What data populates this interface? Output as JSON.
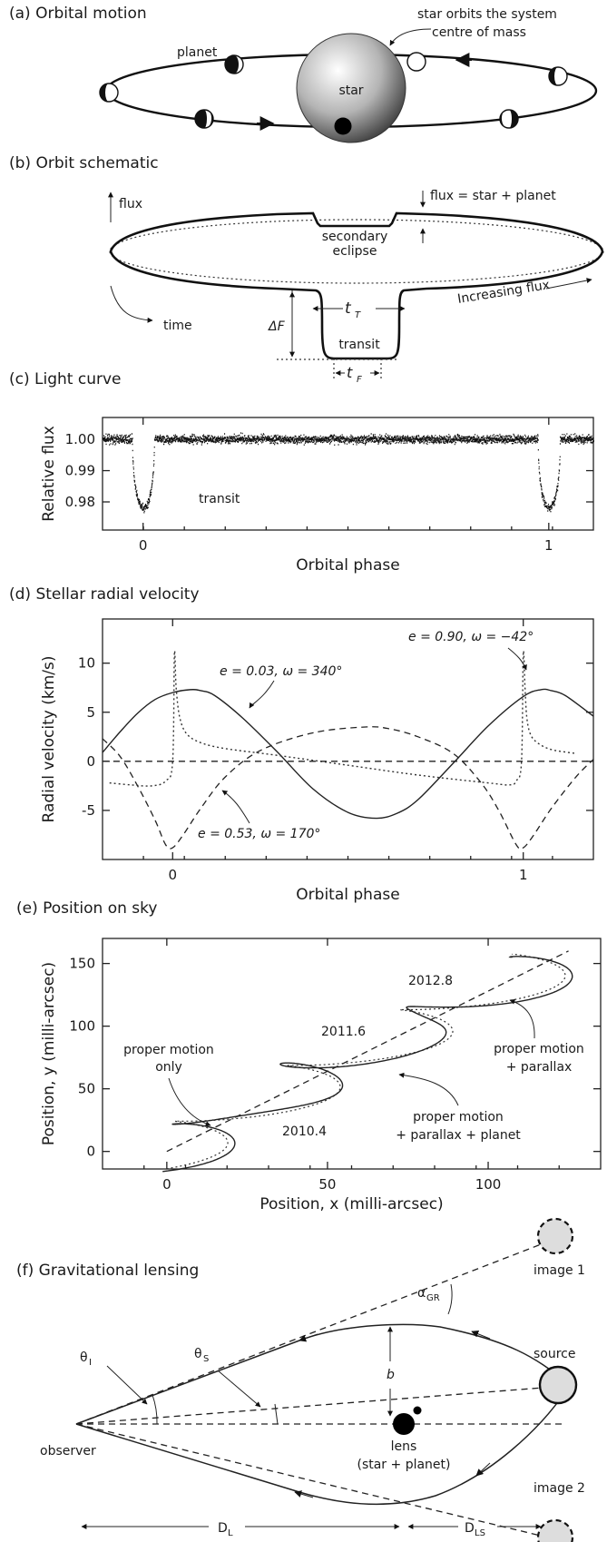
{
  "panels": {
    "a": {
      "title": "(a) Orbital motion",
      "planet": "planet",
      "star": "star",
      "note_l1": "star orbits the system",
      "note_l2": "centre of mass"
    },
    "b": {
      "title": "(b) Orbit schematic",
      "flux_axis": "flux",
      "time_axis": "time",
      "flux_eq": "flux = star + planet",
      "secondary_l1": "secondary",
      "secondary_l2": "eclipse",
      "transit": "transit",
      "increasing": "Increasing flux",
      "deltaF": "ΔF",
      "tT": "t",
      "tT_sub": "T",
      "tF": "t",
      "tF_sub": "F"
    },
    "c": {
      "title": "(c) Light curve"
    },
    "d": {
      "title": "(d) Stellar radial velocity"
    },
    "e": {
      "title": "(e) Position on sky"
    },
    "f": {
      "title": "(f) Gravitational lensing",
      "image1": "image 1",
      "image2": "image 2",
      "source": "source",
      "observer": "observer",
      "lens": "lens",
      "lens_sub": "(star + planet)",
      "alpha": "α",
      "alpha_sub": "GR",
      "theta_i": "θ",
      "theta_i_sub": "I",
      "theta_s": "θ",
      "theta_s_sub": "S",
      "b": "b",
      "dl": "D",
      "dl_sub": "L",
      "dls": "D",
      "dls_sub": "LS"
    }
  },
  "chart_data": [
    {
      "type": "scatter",
      "title": "",
      "xlabel": "Orbital phase",
      "ylabel": "Relative flux",
      "xlim": [
        -0.1,
        1.11
      ],
      "ylim": [
        0.971,
        1.007
      ],
      "xticks": [
        {
          "v": 0,
          "label": "0"
        },
        {
          "v": 1,
          "label": "1"
        }
      ],
      "yticks": [
        {
          "v": 1.0,
          "label": "1.00"
        },
        {
          "v": 0.99,
          "label": "0.99"
        },
        {
          "v": 0.98,
          "label": "0.98"
        }
      ],
      "annotation": "transit",
      "model": {
        "baseline": 1.0,
        "depth": 0.022,
        "half_width": 0.027,
        "noise": 0.0009,
        "transit_phases": [
          0,
          1
        ]
      }
    },
    {
      "type": "line",
      "title": "",
      "xlabel": "Orbital phase",
      "ylabel": "Radial velocity (km/s)",
      "xlim": [
        -0.2,
        1.2
      ],
      "ylim": [
        -10,
        14.5
      ],
      "xticks": [
        {
          "v": 0,
          "label": "0"
        },
        {
          "v": 1,
          "label": "1"
        }
      ],
      "yticks": [
        {
          "v": 10,
          "label": "10"
        },
        {
          "v": 5,
          "label": "5"
        },
        {
          "v": 0,
          "label": "0"
        },
        {
          "v": -5,
          "label": "-5"
        }
      ],
      "zero_line": true,
      "series": [
        {
          "name": "e = 0.03, ω = 340°",
          "style": "solid",
          "x": [
            -0.2,
            -0.15,
            -0.1,
            -0.05,
            0,
            0.05,
            0.08,
            0.12,
            0.2,
            0.3,
            0.4,
            0.5,
            0.58,
            0.64,
            0.7,
            0.8,
            0.9,
            1.0,
            1.05,
            1.08,
            1.12,
            1.2
          ],
          "y": [
            0.9,
            3.0,
            4.9,
            6.3,
            7.0,
            7.3,
            7.2,
            6.7,
            4.4,
            0.9,
            -2.8,
            -5.2,
            -5.8,
            -5.3,
            -3.9,
            -0.2,
            3.6,
            6.6,
            7.3,
            7.2,
            6.7,
            4.6
          ]
        },
        {
          "name": "e = 0.90, ω = −42°",
          "style": "dotted",
          "x": [
            -0.18,
            -0.12,
            -0.06,
            -0.02,
            0,
            0.005,
            0.01,
            0.02,
            0.04,
            0.08,
            0.15,
            0.3,
            0.5,
            0.7,
            0.9,
            0.96,
            0.98,
            0.995,
            1.0,
            1.005,
            1.01,
            1.02,
            1.04,
            1.08,
            1.15
          ],
          "y": [
            -2.2,
            -2.4,
            -2.5,
            -2.0,
            0,
            11.0,
            7.5,
            4.5,
            2.8,
            1.9,
            1.3,
            0.6,
            -0.4,
            -1.4,
            -2.2,
            -2.4,
            -2.0,
            0,
            11.0,
            7.5,
            4.5,
            2.8,
            1.9,
            1.2,
            0.8
          ]
        },
        {
          "name": "e = 0.53, ω = 170°",
          "style": "dashed",
          "x": [
            -0.2,
            -0.15,
            -0.1,
            -0.05,
            -0.02,
            0,
            0.03,
            0.08,
            0.15,
            0.25,
            0.4,
            0.55,
            0.62,
            0.7,
            0.8,
            0.88,
            0.93,
            0.98,
            1.0,
            1.03,
            1.08,
            1.15,
            1.2
          ],
          "y": [
            2.3,
            0.5,
            -2.5,
            -6.0,
            -8.5,
            -8.8,
            -7.5,
            -4.8,
            -1.6,
            1.1,
            2.9,
            3.5,
            3.3,
            2.5,
            0.8,
            -2.2,
            -5.0,
            -8.5,
            -8.8,
            -7.5,
            -4.8,
            -1.6,
            0.2
          ]
        },
        {
          "name": "",
          "style": "dashed",
          "x": [
            -0.2,
            1.2
          ],
          "y": [
            0,
            0
          ]
        }
      ],
      "labels": [
        "e = 0.03, ω = 340°",
        "e = 0.90, ω = −42°",
        "e = 0.53, ω = 170°"
      ]
    },
    {
      "type": "line",
      "title": "",
      "xlabel": "Position, x (milli-arcsec)",
      "ylabel": "Position, y (milli-arcsec)",
      "xlim": [
        -20,
        135
      ],
      "ylim": [
        -14,
        170
      ],
      "xticks": [
        {
          "v": 0,
          "label": "0"
        },
        {
          "v": 50,
          "label": "50"
        },
        {
          "v": 100,
          "label": "100"
        }
      ],
      "yticks": [
        {
          "v": 0,
          "label": "0"
        },
        {
          "v": 50,
          "label": "50"
        },
        {
          "v": 100,
          "label": "100"
        },
        {
          "v": 150,
          "label": "150"
        }
      ],
      "series": [
        {
          "name": "proper motion only",
          "style": "dashed",
          "x": [
            0,
            125
          ],
          "y": [
            0,
            160
          ]
        },
        {
          "name": "proper motion + parallax",
          "style": "dotted",
          "model": {
            "x0": -5,
            "y0": -7,
            "vx": 35,
            "vy": 44.5,
            "amp": 16,
            "t0": 2009.8,
            "t1": 2013.45
          }
        },
        {
          "name": "proper motion + parallax + planet",
          "style": "solid",
          "model": {
            "x0": -5,
            "y0": -7,
            "vx": 35,
            "vy": 44.5,
            "amp": 16,
            "t0": 2009.8,
            "t1": 2013.45,
            "wamp": 2.5,
            "wper": 0.6
          }
        }
      ],
      "labels": [
        "2010.4",
        "2011.6",
        "2012.8",
        "proper motion",
        "only",
        "proper motion",
        "+ parallax",
        "proper motion",
        "+ parallax + planet"
      ]
    }
  ]
}
